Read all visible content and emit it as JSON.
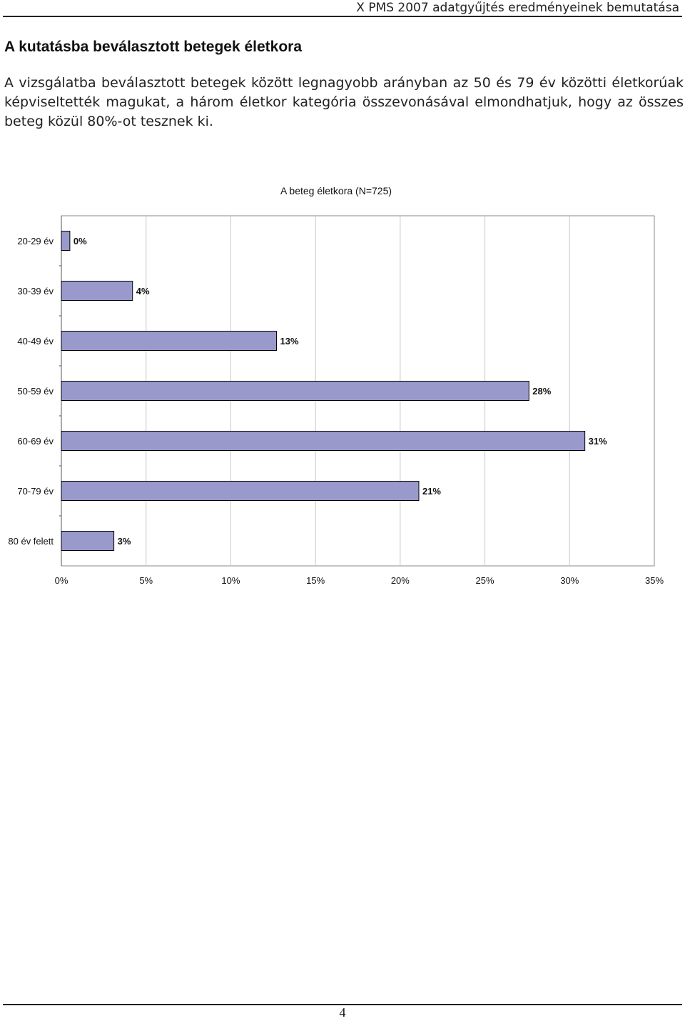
{
  "header": {
    "title": "X PMS 2007 adatgyűjtés eredményeinek bemutatása"
  },
  "section": {
    "heading": "A kutatásba beválasztott betegek életkora"
  },
  "intro": {
    "text": "A vizsgálatba beválasztott betegek között legnagyobb arányban az 50 és 79 év közötti életkorúak képviseltették magukat, a három életkor kategória összevonásával elmondhatjuk, hogy az összes beteg közül 80%-ot tesznek ki."
  },
  "chart_data": {
    "type": "bar",
    "orientation": "horizontal",
    "title": "A beteg életkora (N=725)",
    "categories": [
      "20-29 év",
      "30-39 év",
      "40-49 év",
      "50-59 év",
      "60-69 év",
      "70-79 év",
      "80 év felett"
    ],
    "values": [
      0.5,
      4.2,
      12.7,
      27.6,
      30.9,
      21.1,
      3.1
    ],
    "data_labels": [
      "0%",
      "4%",
      "13%",
      "28%",
      "31%",
      "21%",
      "3%"
    ],
    "x_ticks": [
      "0%",
      "5%",
      "10%",
      "15%",
      "20%",
      "25%",
      "30%",
      "35%"
    ],
    "xlim": [
      0,
      35
    ],
    "grid": true,
    "bar_color": "#9999cc",
    "xlabel": "",
    "ylabel": ""
  },
  "footer": {
    "page_number": "4"
  }
}
